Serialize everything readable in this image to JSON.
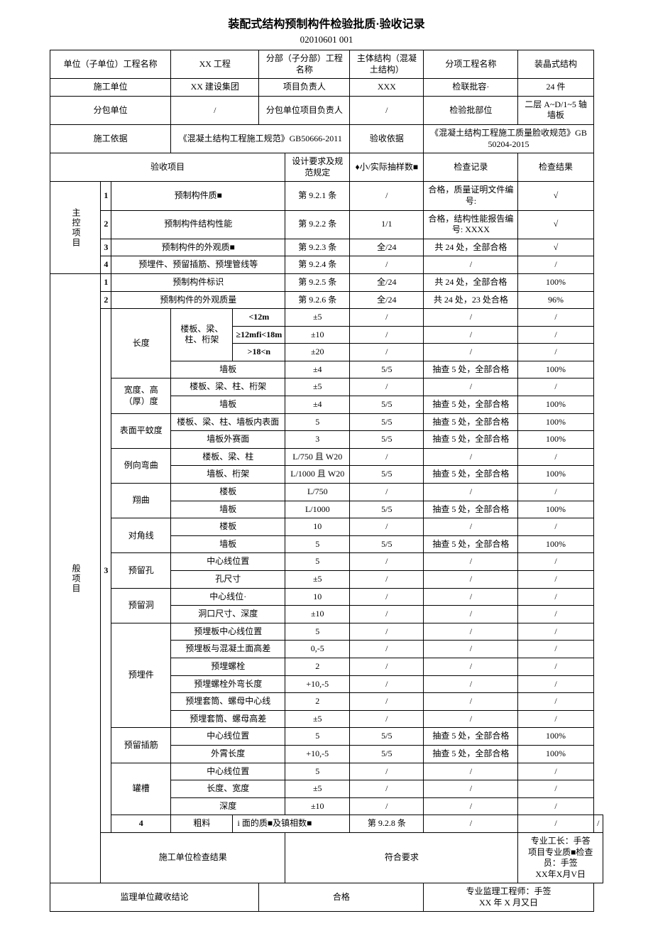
{
  "title": "装配式结构预制构件检验批质·验收记录",
  "subtitle": "02010601   001",
  "header": {
    "unit_label": "单位（子单位）工程名称",
    "unit_value": "XX 工程",
    "subdiv_label": "分部（子分部）工程名称",
    "subdiv_value": "主体结构（混凝土结构）",
    "subitem_label": "分项工程名称",
    "subitem_value": "装晶式结构",
    "contractor_label": "施工单位",
    "contractor_value": "XX 建设集团",
    "pm_label": "项目负责人",
    "pm_value": "XXX",
    "batch_cap_label": "检联批容·",
    "batch_cap_value": "24 件",
    "subcon_label": "分包单位",
    "subcon_value": "/",
    "subcon_pm_label": "分包单位项目负责人",
    "subcon_pm_value": "/",
    "batch_loc_label": "检验批部位",
    "batch_loc_value": "二层 A~D/1~5 轴墙板",
    "basis_label": "施工依据",
    "basis_value": "《混凝土结构工程施工规范》GB50666-2011",
    "accept_basis_label": "验收依据",
    "accept_basis_value": "《混凝土结构工程施工质量脸收规范》GB 50204-2015"
  },
  "columns": {
    "item": "验收项目",
    "spec": "设计要求及规范规定",
    "sample": "♦小/实际抽样数■",
    "record": "检查记录",
    "result": "检查结果"
  },
  "main_label": "主控项目",
  "main": [
    {
      "n": "1",
      "name": "预制构件质■",
      "spec": "第 9.2.1 条",
      "sample": "/",
      "record": "合格，质量证明文件编号:",
      "result": "√"
    },
    {
      "n": "2",
      "name": "预制构件结构性能",
      "spec": "第 9.2.2 条",
      "sample": "1/1",
      "record": "合格，结构性能报告编号: XXXX",
      "result": "√"
    },
    {
      "n": "3",
      "name": "预制构件的外观质■",
      "spec": "第 9.2.3 条",
      "sample": "全/24",
      "record": "共 24 处，全部合格",
      "result": "√"
    },
    {
      "n": "4",
      "name": "预埋件、预留插筋、预埋管线等",
      "spec": "第 9.2.4 条",
      "sample": "/",
      "record": "/",
      "result": "/"
    }
  ],
  "gen_label": "般项目",
  "gen1": {
    "n": "1",
    "name": "预制构件标识",
    "spec": "第 9.2.5 条",
    "sample": "全/24",
    "record": "共 24 处，全部合格",
    "result": "100%"
  },
  "gen2": {
    "n": "2",
    "name": "预制构件的外观质量",
    "spec": "第 9.2.6 条",
    "sample": "全/24",
    "record": "共 24 处，23 处合格",
    "result": "96%"
  },
  "gen3": {
    "n": "3",
    "groups": {
      "length": {
        "label": "长度",
        "sub1": "楼板、梁、柱、桁架",
        "rows": [
          {
            "name": "<12m",
            "spec": "±5",
            "sample": "/",
            "record": "/",
            "result": "/"
          },
          {
            "name": "≥12mfi<18m",
            "spec": "±10",
            "sample": "/",
            "record": "/",
            "result": "/"
          },
          {
            "name": ">18<n",
            "spec": "±20",
            "sample": "/",
            "record": "/",
            "result": "/"
          }
        ],
        "wall": {
          "name": "墙板",
          "spec": "±4",
          "sample": "5/5",
          "record": "抽查 5 处，全部合格",
          "result": "100%"
        }
      },
      "width": {
        "label": "宽度、高（厚）度",
        "rows": [
          {
            "name": "楼板、梁、柱、桁架",
            "spec": "±5",
            "sample": "/",
            "record": "/",
            "result": "/"
          },
          {
            "name": "墙板",
            "spec": "±4",
            "sample": "5/5",
            "record": "抽查 5 处，全部合格",
            "result": "100%"
          }
        ]
      },
      "flat": {
        "label": "表面平蚊度",
        "rows": [
          {
            "name": "楼板、梁、柱、墙板内表面",
            "spec": "5",
            "sample": "5/5",
            "record": "抽查 5 处，全部合格",
            "result": "100%"
          },
          {
            "name": "墙板外赛面",
            "spec": "3",
            "sample": "5/5",
            "record": "抽查 5 处，全部合格",
            "result": "100%"
          }
        ]
      },
      "side": {
        "label": "例向弯曲",
        "rows": [
          {
            "name": "楼板、梁、柱",
            "spec": "L/750 且 W20",
            "sample": "/",
            "record": "/",
            "result": "/"
          },
          {
            "name": "墙板、桁架",
            "spec": "L/1000 且 W20",
            "sample": "5/5",
            "record": "抽查 5 处，全部合格",
            "result": "100%"
          }
        ]
      },
      "warp": {
        "label": "翔曲",
        "rows": [
          {
            "name": "楼板",
            "spec": "L/750",
            "sample": "/",
            "record": "/",
            "result": "/"
          },
          {
            "name": "墙板",
            "spec": "L/1000",
            "sample": "5/5",
            "record": "抽查 5 处，全部合格",
            "result": "100%"
          }
        ]
      },
      "diag": {
        "label": "对角线",
        "rows": [
          {
            "name": "楼板",
            "spec": "10",
            "sample": "/",
            "record": "/",
            "result": "/"
          },
          {
            "name": "墙板",
            "spec": "5",
            "sample": "5/5",
            "record": "抽查 5 处，全部合格",
            "result": "100%"
          }
        ]
      },
      "hole": {
        "label": "预留孔",
        "rows": [
          {
            "name": "中心线位置",
            "spec": "5",
            "sample": "/",
            "record": "/",
            "result": "/"
          },
          {
            "name": "孔尺寸",
            "spec": "±5",
            "sample": "/",
            "record": "/",
            "result": "/"
          }
        ]
      },
      "opening": {
        "label": "预留洞",
        "rows": [
          {
            "name": "中心线位·",
            "spec": "10",
            "sample": "/",
            "record": "/",
            "result": "/"
          },
          {
            "name": "洞口尺寸、深度",
            "spec": "±10",
            "sample": "/",
            "record": "/",
            "result": "/"
          }
        ]
      },
      "embed": {
        "label": "预埋件",
        "rows": [
          {
            "name": "预埋板中心线位置",
            "spec": "5",
            "sample": "/",
            "record": "/",
            "result": "/"
          },
          {
            "name": "预埋板与混凝土面高差",
            "spec": "0,-5",
            "sample": "/",
            "record": "/",
            "result": "/"
          },
          {
            "name": "预埋螺栓",
            "spec": "2",
            "sample": "/",
            "record": "/",
            "result": "/"
          },
          {
            "name": "预埋螺栓外弯长度",
            "spec": "+10,-5",
            "sample": "/",
            "record": "/",
            "result": "/"
          },
          {
            "name": "预埋套筒、螺母中心线",
            "spec": "2",
            "sample": "/",
            "record": "/",
            "result": "/"
          },
          {
            "name": "预埋套筒、螺母高差",
            "spec": "±5",
            "sample": "/",
            "record": "/",
            "result": "/"
          }
        ]
      },
      "rebar": {
        "label": "预留插筋",
        "rows": [
          {
            "name": "中心线位置",
            "spec": "5",
            "sample": "5/5",
            "record": "抽查 5 处，全部合格",
            "result": "100%"
          },
          {
            "name": "外霄长度",
            "spec": "+10,-5",
            "sample": "5/5",
            "record": "抽查 5 处，全部合格",
            "result": "100%"
          }
        ]
      },
      "slot": {
        "label": "罐槽",
        "rows": [
          {
            "name": "中心线位置",
            "spec": "5",
            "sample": "/",
            "record": "/",
            "result": "/"
          },
          {
            "name": "长度、宽度",
            "spec": "±5",
            "sample": "/",
            "record": "/",
            "result": "/"
          },
          {
            "name": "深度",
            "spec": "±10",
            "sample": "/",
            "record": "/",
            "result": "/"
          }
        ]
      }
    }
  },
  "gen4": {
    "n": "4",
    "name1": "粗料",
    "name2": "i 面的质■及镇相数■",
    "spec": "第 9.2.8 条",
    "sample": "/",
    "record": "/",
    "result": "/"
  },
  "footer": {
    "contractor_result_label": "施工单位检查结果",
    "contractor_result_value": "符合要求",
    "contractor_sign": "专业工长：手答\n项目专业质■检查员：手签\nXX年X月V日",
    "supervisor_label": "监理单位藏收结论",
    "supervisor_value": "合格",
    "supervisor_sign": "专业监理工程师：手签\nXX 年 X 月又日"
  }
}
